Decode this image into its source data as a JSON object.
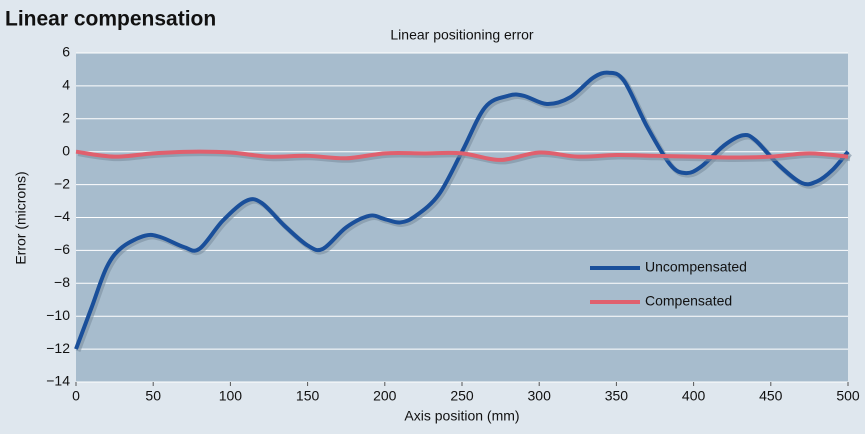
{
  "chart_data": {
    "type": "line",
    "title": "Linear compensation",
    "subtitle": "Linear positioning error",
    "x_label": "Axis position (mm)",
    "y_label": "Error (microns)",
    "xlim": [
      0,
      500
    ],
    "xticks": [
      0,
      50,
      100,
      150,
      200,
      250,
      300,
      350,
      400,
      450,
      500
    ],
    "ylim": [
      -14,
      6
    ],
    "yticks": [
      {
        "value": -14,
        "label": "−14"
      },
      {
        "value": -12,
        "label": "−12"
      },
      {
        "value": -10,
        "label": "−10"
      },
      {
        "value": -8,
        "label": "−8"
      },
      {
        "value": -6,
        "label": "−6"
      },
      {
        "value": -4,
        "label": "−4"
      },
      {
        "value": -2,
        "label": "−2"
      },
      0,
      2,
      4,
      6
    ],
    "grid": true,
    "series": [
      {
        "name": "Uncompensated",
        "color": "#1a4f9a",
        "x": [
          0,
          10,
          20,
          30,
          45,
          55,
          70,
          80,
          95,
          110,
          120,
          135,
          150,
          160,
          175,
          190,
          200,
          210,
          220,
          235,
          250,
          265,
          280,
          290,
          305,
          320,
          335,
          345,
          355,
          370,
          385,
          395,
          405,
          420,
          432,
          440,
          455,
          470,
          480,
          490,
          500
        ],
        "values": [
          -12,
          -9.5,
          -7,
          -5.8,
          -5.1,
          -5.2,
          -5.8,
          -5.9,
          -4.2,
          -3,
          -3.1,
          -4.5,
          -5.7,
          -5.9,
          -4.6,
          -3.9,
          -4.1,
          -4.3,
          -3.9,
          -2.6,
          0,
          2.7,
          3.4,
          3.4,
          2.9,
          3.3,
          4.5,
          4.8,
          4.3,
          1.5,
          -0.8,
          -1.3,
          -0.9,
          0.4,
          1,
          0.7,
          -0.8,
          -1.9,
          -1.8,
          -1.1,
          0
        ]
      },
      {
        "name": "Compensated",
        "color": "#e0606e",
        "x": [
          0,
          25,
          50,
          75,
          100,
          125,
          150,
          175,
          200,
          225,
          250,
          275,
          300,
          325,
          350,
          375,
          400,
          425,
          450,
          475,
          500
        ],
        "values": [
          0,
          -0.3,
          -0.1,
          0,
          -0.05,
          -0.3,
          -0.25,
          -0.4,
          -0.1,
          -0.1,
          -0.1,
          -0.5,
          -0.05,
          -0.3,
          -0.2,
          -0.25,
          -0.3,
          -0.35,
          -0.3,
          -0.1,
          -0.3
        ]
      }
    ]
  }
}
